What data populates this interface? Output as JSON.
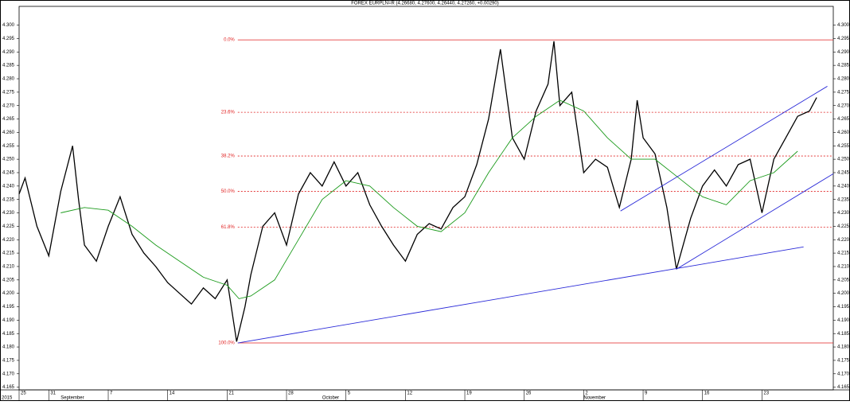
{
  "chart_data": {
    "type": "line",
    "title": "FOREX EURPLN=R (4.26680, 4.27600, 4.26440, 4.27260, +0.00290)",
    "xlim": [
      2.5,
      71
    ],
    "ylim": [
      4.164,
      4.307
    ],
    "xticks": [
      {
        "value": 2.5,
        "label": "25"
      },
      {
        "value": 5,
        "label": "31"
      },
      {
        "value": 10,
        "label": "7"
      },
      {
        "value": 15,
        "label": "14"
      },
      {
        "value": 20,
        "label": "21"
      },
      {
        "value": 25,
        "label": "28"
      },
      {
        "value": 30,
        "label": "5"
      },
      {
        "value": 35,
        "label": "12"
      },
      {
        "value": 40,
        "label": "19"
      },
      {
        "value": 45,
        "label": "26"
      },
      {
        "value": 50,
        "label": "2"
      },
      {
        "value": 55,
        "label": "9"
      },
      {
        "value": 60,
        "label": "16"
      },
      {
        "value": 65,
        "label": "23"
      }
    ],
    "year_label": {
      "value": 2.5,
      "label": "2015"
    },
    "month_labels": [
      {
        "value": 6,
        "label": "September"
      },
      {
        "value": 28,
        "label": "October"
      },
      {
        "value": 50,
        "label": "November"
      }
    ],
    "yticks": [
      4.165,
      {
        "value": 4.17,
        "label": "4.170"
      },
      4.175,
      {
        "value": 4.18,
        "label": "4.180"
      },
      4.185,
      {
        "value": 4.19,
        "label": "4.190"
      },
      4.195,
      {
        "value": 4.2,
        "label": "4.200"
      },
      4.205,
      {
        "value": 4.21,
        "label": "4.210"
      },
      4.215,
      {
        "value": 4.22,
        "label": "4.220"
      },
      4.225,
      {
        "value": 4.23,
        "label": "4.230"
      },
      4.235,
      {
        "value": 4.24,
        "label": "4.240"
      },
      4.245,
      {
        "value": 4.25,
        "label": "4.250"
      },
      4.255,
      {
        "value": 4.26,
        "label": "4.260"
      },
      4.265,
      {
        "value": 4.27,
        "label": "4.270"
      },
      4.275,
      {
        "value": 4.28,
        "label": "4.280"
      },
      4.285,
      {
        "value": 4.29,
        "label": "4.290"
      },
      4.295,
      {
        "value": 4.3,
        "label": "4.300"
      }
    ],
    "series": [
      {
        "color": "#000000",
        "x": [
          2.5,
          3,
          4,
          5,
          6,
          7,
          7.5,
          8,
          9,
          10,
          11,
          12,
          13,
          14,
          15,
          16,
          17,
          18,
          19,
          20,
          20.8,
          21.5,
          22,
          23,
          24,
          25,
          26,
          27,
          28,
          29,
          30,
          31,
          32,
          33,
          34,
          35,
          36,
          37,
          38,
          39,
          40,
          41,
          42,
          43,
          44,
          45,
          46,
          47,
          47.5,
          48,
          49,
          50,
          51,
          52,
          53,
          54,
          54.5,
          55,
          56,
          57,
          57.8,
          59,
          60,
          61,
          62,
          63,
          64,
          65,
          66,
          67,
          68,
          69,
          69.6
        ],
        "values": [
          4.237,
          4.243,
          4.225,
          4.214,
          4.238,
          4.255,
          4.235,
          4.218,
          4.212,
          4.225,
          4.236,
          4.222,
          4.215,
          4.21,
          4.204,
          4.2,
          4.196,
          4.202,
          4.198,
          4.205,
          4.182,
          4.195,
          4.207,
          4.225,
          4.23,
          4.218,
          4.237,
          4.245,
          4.24,
          4.249,
          4.24,
          4.245,
          4.233,
          4.225,
          4.218,
          4.212,
          4.222,
          4.226,
          4.224,
          4.232,
          4.236,
          4.248,
          4.265,
          4.291,
          4.258,
          4.25,
          4.268,
          4.278,
          4.294,
          4.27,
          4.275,
          4.245,
          4.25,
          4.247,
          4.232,
          4.25,
          4.272,
          4.258,
          4.252,
          4.232,
          4.209,
          4.228,
          4.24,
          4.246,
          4.24,
          4.248,
          4.25,
          4.23,
          4.25,
          4.258,
          4.266,
          4.268,
          4.273
        ]
      },
      {
        "color": "#1a9a1a",
        "x": [
          6,
          8,
          10,
          12,
          14,
          16,
          18,
          20,
          21,
          22,
          24,
          26,
          28,
          30,
          32,
          34,
          36,
          38,
          40,
          42,
          44,
          46,
          48,
          50,
          52,
          54,
          56,
          58,
          60,
          62,
          64,
          66,
          68
        ],
        "values": [
          4.23,
          4.232,
          4.231,
          4.225,
          4.218,
          4.212,
          4.206,
          4.203,
          4.198,
          4.199,
          4.205,
          4.22,
          4.235,
          4.242,
          4.24,
          4.232,
          4.225,
          4.223,
          4.23,
          4.245,
          4.258,
          4.266,
          4.272,
          4.268,
          4.258,
          4.25,
          4.25,
          4.243,
          4.236,
          4.233,
          4.242,
          4.245,
          4.253
        ]
      }
    ],
    "levels": {
      "color": "#e02020",
      "start": 20.9,
      "items": [
        {
          "label": "0.0%",
          "value": 4.2945,
          "dashed": false
        },
        {
          "label": "23.6%",
          "value": 4.2675,
          "dashed": true
        },
        {
          "label": "38.2%",
          "value": 4.2512,
          "dashed": true
        },
        {
          "label": "50.0%",
          "value": 4.238,
          "dashed": true
        },
        {
          "label": "61.8%",
          "value": 4.2247,
          "dashed": true
        },
        {
          "label": "100.0%",
          "value": 4.1815,
          "dashed": false
        }
      ]
    },
    "trendlines": {
      "color": "#2a2ad8",
      "items": [
        {
          "x": [
            20.9,
            68.5
          ],
          "y": [
            4.1815,
            4.2173
          ]
        },
        {
          "x": [
            57.8,
            71
          ],
          "y": [
            4.209,
            4.2446
          ]
        },
        {
          "x": [
            53.1,
            70.5
          ],
          "y": [
            4.2307,
            4.2772
          ]
        }
      ]
    }
  }
}
